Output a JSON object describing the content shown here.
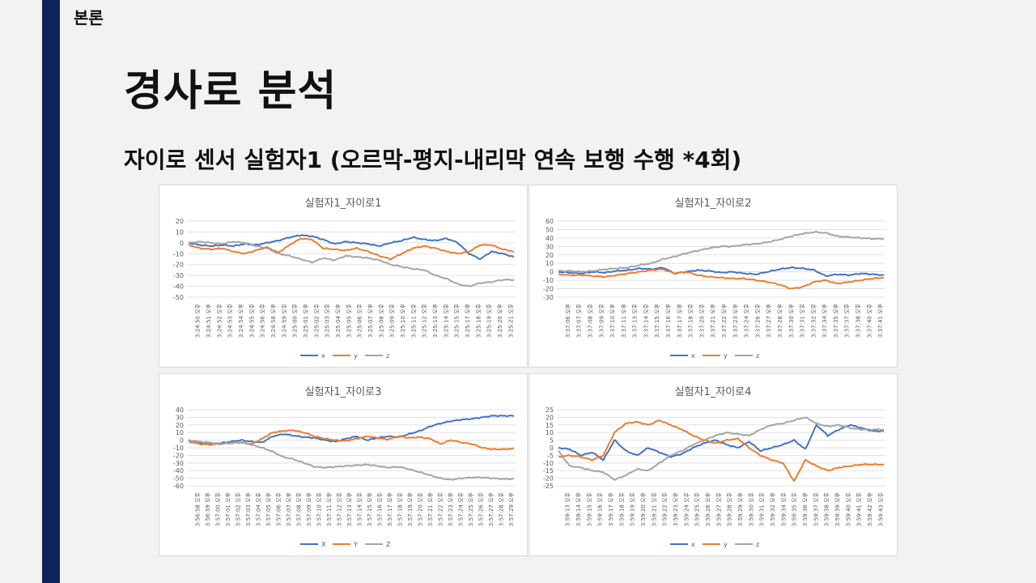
{
  "section_label": "본론",
  "title": "경사로 분석",
  "subtitle": "자이로 센서 실험자1 (오르막-평지-내리막 연속 보행 수행 *4회)",
  "colors": {
    "x": "#4472c4",
    "y": "#ed7d31",
    "z": "#a5a5a5",
    "grid": "#d9d9d9",
    "text": "#595959",
    "sidebar": "#0d2359"
  },
  "chart_data": [
    {
      "type": "line",
      "title": "실험자1_자이로1",
      "ylim": [
        -50,
        20
      ],
      "yticks": [
        "20",
        "10",
        "0",
        "-10",
        "-20",
        "-30",
        "-40",
        "-50"
      ],
      "categories": [
        "3:24:50 오후",
        "3:24:51 오후",
        "3:24:52 오후",
        "3:24:53 오후",
        "3:24:54 오후",
        "3:24:55 오후",
        "3:24:56 오후",
        "3:24:58 오후",
        "3:24:59 오후",
        "3:25:00 오후",
        "3:25:01 오후",
        "3:25:02 오후",
        "3:25:03 오후",
        "3:25:04 오후",
        "3:25:05 오후",
        "3:25:06 오후",
        "3:25:07 오후",
        "3:25:08 오후",
        "3:25:09 오후",
        "3:25:10 오후",
        "3:25:11 오후",
        "3:25:12 오후",
        "3:25:13 오후",
        "3:25:14 오후",
        "3:25:15 오후",
        "3:25:17 오후",
        "3:25:18 오후",
        "3:25:19 오후",
        "3:25:20 오후",
        "3:25:21 오후"
      ],
      "legend": [
        "x",
        "y",
        "z"
      ],
      "series": [
        {
          "name": "x",
          "values": [
            0,
            -2,
            -3,
            -2,
            -3,
            -1,
            -2,
            0,
            2,
            5,
            7,
            6,
            3,
            -1,
            1,
            0,
            -1,
            -3,
            0,
            2,
            5,
            3,
            2,
            4,
            0,
            -10,
            -15,
            -8,
            -10,
            -13
          ]
        },
        {
          "name": "y",
          "values": [
            -2,
            -5,
            -6,
            -5,
            -8,
            -10,
            -7,
            -4,
            -9,
            -2,
            4,
            3,
            -5,
            -6,
            -7,
            -5,
            -8,
            -12,
            -15,
            -10,
            -5,
            -3,
            -5,
            -8,
            -10,
            -8,
            -2,
            -2,
            -6,
            -8
          ]
        },
        {
          "name": "z",
          "values": [
            0,
            1,
            0,
            -1,
            1,
            0,
            -3,
            -5,
            -10,
            -12,
            -15,
            -18,
            -14,
            -16,
            -12,
            -13,
            -14,
            -16,
            -20,
            -22,
            -24,
            -25,
            -30,
            -33,
            -38,
            -40,
            -37,
            -36,
            -34,
            -34
          ]
        }
      ]
    },
    {
      "type": "line",
      "title": "실험자1_자이로2",
      "ylim": [
        -30,
        60
      ],
      "yticks": [
        "60",
        "50",
        "40",
        "30",
        "20",
        "10",
        "0",
        "-10",
        "-20",
        "-30"
      ],
      "categories": [
        "3:37:06 오후",
        "3:37:07 오후",
        "3:37:08 오후",
        "3:37:09 오후",
        "3:37:10 오후",
        "3:37:11 오후",
        "3:37:13 오후",
        "3:37:14 오후",
        "3:37:15 오후",
        "3:37:16 오후",
        "3:37:17 오후",
        "3:37:18 오후",
        "3:37:20 오후",
        "3:37:21 오후",
        "3:37:22 오후",
        "3:37:23 오후",
        "3:37:24 오후",
        "3:37:26 오후",
        "3:37:27 오후",
        "3:37:28 오후",
        "3:37:30 오후",
        "3:37:31 오후",
        "3:37:32 오후",
        "3:37:34 오후",
        "3:37:35 오후",
        "3:37:37 오후",
        "3:37:38 오후",
        "3:37:40 오후",
        "3:37:41 오후"
      ],
      "legend": [
        "x",
        "y",
        "z"
      ],
      "series": [
        {
          "name": "x",
          "values": [
            0,
            -1,
            -2,
            0,
            -1,
            1,
            2,
            4,
            3,
            5,
            -2,
            0,
            2,
            1,
            -1,
            0,
            -2,
            -3,
            0,
            3,
            5,
            4,
            2,
            -5,
            -3,
            -4,
            -2,
            -3,
            -4
          ]
        },
        {
          "name": "y",
          "values": [
            -3,
            -4,
            -4,
            -5,
            -6,
            -4,
            -2,
            0,
            2,
            3,
            -2,
            0,
            -4,
            -6,
            -7,
            -8,
            -8,
            -10,
            -12,
            -15,
            -20,
            -18,
            -12,
            -10,
            -14,
            -12,
            -10,
            -8,
            -7
          ]
        },
        {
          "name": "z",
          "values": [
            1,
            1,
            0,
            1,
            3,
            4,
            5,
            8,
            10,
            15,
            18,
            22,
            25,
            28,
            30,
            30,
            32,
            33,
            35,
            38,
            42,
            45,
            47,
            46,
            42,
            41,
            40,
            39,
            39
          ]
        }
      ]
    },
    {
      "type": "line",
      "title": "실험자1_자이로3",
      "ylim": [
        -60,
        40
      ],
      "yticks": [
        "40",
        "30",
        "20",
        "10",
        "0",
        "-10",
        "-20",
        "-30",
        "-40",
        "-50",
        "-60"
      ],
      "categories": [
        "3:56:58 오후",
        "3:56:59 오후",
        "3:57:00 오후",
        "3:57:01 오후",
        "3:57:02 오후",
        "3:57:03 오후",
        "3:57:04 오후",
        "3:57:05 오후",
        "3:57:06 오후",
        "3:57:07 오후",
        "3:57:08 오후",
        "3:57:09 오후",
        "3:57:10 오후",
        "3:57:11 오후",
        "3:57:12 오후",
        "3:57:13 오후",
        "3:57:14 오후",
        "3:57:15 오후",
        "3:57:16 오후",
        "3:57:17 오후",
        "3:57:18 오후",
        "3:57:19 오후",
        "3:57:20 오후",
        "3:57:21 오후",
        "3:57:22 오후",
        "3:57:23 오후",
        "3:57:24 오후",
        "3:57:25 오후",
        "3:57:26 오후",
        "3:57:27 오후",
        "3:57:28 오후",
        "3:57:29 오후"
      ],
      "legend": [
        "X",
        "Y",
        "Z"
      ],
      "series": [
        {
          "name": "X",
          "values": [
            0,
            -3,
            -5,
            -4,
            -2,
            0,
            -2,
            -3,
            5,
            8,
            6,
            4,
            3,
            0,
            -2,
            2,
            5,
            0,
            3,
            5,
            4,
            8,
            12,
            18,
            22,
            25,
            27,
            28,
            30,
            32,
            32,
            32
          ]
        },
        {
          "name": "Y",
          "values": [
            -2,
            -5,
            -6,
            -5,
            -4,
            -3,
            -5,
            2,
            10,
            12,
            13,
            10,
            5,
            2,
            0,
            -1,
            2,
            5,
            3,
            1,
            5,
            3,
            4,
            2,
            -5,
            0,
            -3,
            -5,
            -10,
            -12,
            -12,
            -11
          ]
        },
        {
          "name": "Z",
          "values": [
            -1,
            -2,
            -3,
            -5,
            -4,
            -3,
            -6,
            -10,
            -15,
            -22,
            -25,
            -30,
            -35,
            -36,
            -35,
            -34,
            -33,
            -32,
            -34,
            -36,
            -35,
            -38,
            -42,
            -46,
            -50,
            -52,
            -50,
            -49,
            -49,
            -50,
            -51,
            -51
          ]
        }
      ]
    },
    {
      "type": "line",
      "title": "실험자1_자이로4",
      "ylim": [
        -25,
        25
      ],
      "yticks": [
        "25",
        "20",
        "15",
        "10",
        "5",
        "0",
        "-5",
        "-10",
        "-15",
        "-20",
        "-25"
      ],
      "categories": [
        "3:59:13 오후",
        "3:59:14 오후",
        "3:59:15 오후",
        "3:59:16 오후",
        "3:59:17 오후",
        "3:59:18 오후",
        "3:59:19 오후",
        "3:59:20 오후",
        "3:59:21 오후",
        "3:59:22 오후",
        "3:59:23 오후",
        "3:59:24 오후",
        "3:59:25 오후",
        "3:59:26 오후",
        "3:59:27 오후",
        "3:59:28 오후",
        "3:59:29 오후",
        "3:59:30 오후",
        "3:59:31 오후",
        "3:59:32 오후",
        "3:59:34 오후",
        "3:59:35 오후",
        "3:59:36 오후",
        "3:59:37 오후",
        "3:59:38 오후",
        "3:59:39 오후",
        "3:59:40 오후",
        "3:59:41 오후",
        "3:59:42 오후",
        "3:59:43 오후"
      ],
      "legend": [
        "x",
        "y",
        "z"
      ],
      "series": [
        {
          "name": "x",
          "values": [
            0,
            -1,
            -5,
            -3,
            -8,
            5,
            -2,
            -5,
            0,
            -3,
            -6,
            -4,
            0,
            3,
            5,
            2,
            0,
            4,
            -2,
            0,
            2,
            5,
            -1,
            15,
            8,
            12,
            15,
            13,
            11,
            11
          ]
        },
        {
          "name": "y",
          "values": [
            -6,
            -5,
            -6,
            -8,
            -5,
            10,
            16,
            17,
            15,
            18,
            15,
            12,
            8,
            5,
            3,
            5,
            6,
            0,
            -5,
            -8,
            -10,
            -22,
            -8,
            -12,
            -15,
            -13,
            -12,
            -11,
            -11,
            -11
          ]
        },
        {
          "name": "z",
          "values": [
            -2,
            -12,
            -13,
            -15,
            -16,
            -21,
            -18,
            -14,
            -15,
            -10,
            -5,
            -2,
            2,
            5,
            8,
            10,
            9,
            8,
            12,
            15,
            16,
            18,
            20,
            16,
            14,
            15,
            13,
            12,
            12,
            12
          ]
        }
      ]
    }
  ]
}
